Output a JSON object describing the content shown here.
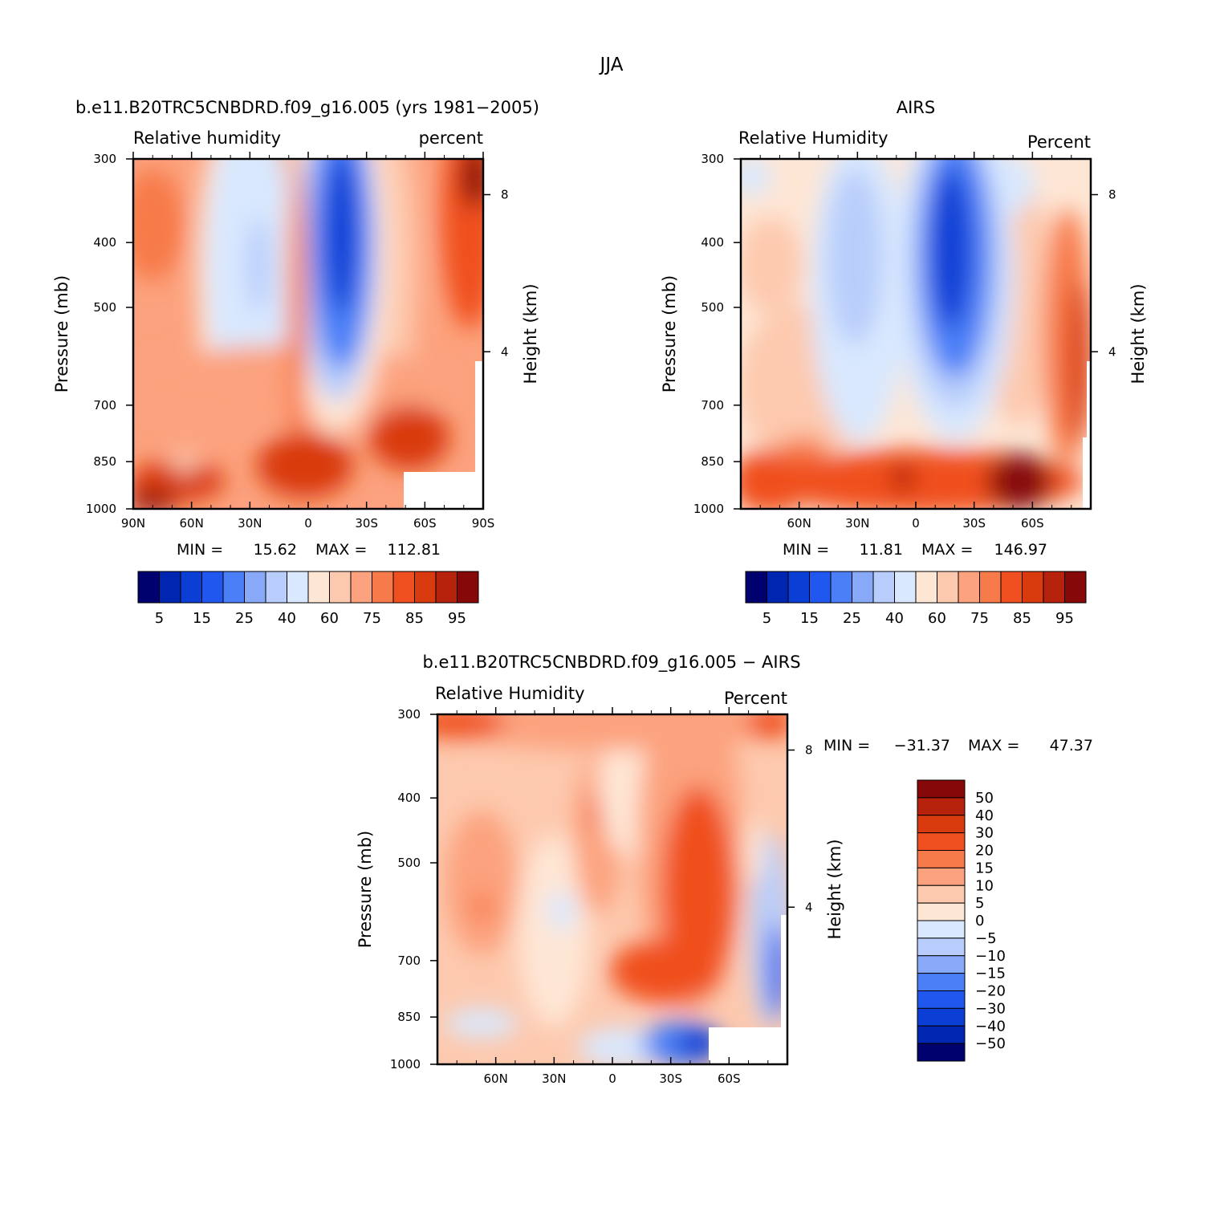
{
  "figure_title": "JJA",
  "chart_data": [
    {
      "type": "heatmap",
      "title": "b.e11.B20TRC5CNBDRD.f09_g16.005 (yrs 1981−2005)",
      "left_label": "Relative humidity",
      "right_label": "percent",
      "xlabel": "",
      "ylabel": "Pressure (mb)",
      "y2label": "Height (km)",
      "x_ticks": [
        "90N",
        "60N",
        "30N",
        "0",
        "30S",
        "60S",
        "90S"
      ],
      "y_ticks": [
        "300",
        "400",
        "500",
        "700",
        "850",
        "1000"
      ],
      "y2_ticks": [
        "8",
        "4"
      ],
      "ylim": [
        1000,
        300
      ],
      "min_label": "MIN =",
      "min": "15.62",
      "max_label": "MAX =",
      "max": "112.81",
      "colorbar_labels": [
        "5",
        "15",
        "25",
        "40",
        "60",
        "75",
        "85",
        "95"
      ],
      "colors": [
        "#00006e",
        "#0025b0",
        "#0a3ed4",
        "#1f57ef",
        "#4a7ff7",
        "#88a9f8",
        "#b8cdfb",
        "#d9e8fe",
        "#fee6d5",
        "#fdc9ae",
        "#fca27e",
        "#f77a4a",
        "#f0501f",
        "#d93a0e",
        "#b6220b",
        "#870808"
      ]
    },
    {
      "type": "heatmap",
      "title": "AIRS",
      "left_label": "Relative Humidity",
      "right_label": "Percent",
      "xlabel": "",
      "ylabel": "Pressure (mb)",
      "y2label": "Height (km)",
      "x_ticks": [
        "60N",
        "30N",
        "0",
        "30S",
        "60S"
      ],
      "y_ticks": [
        "300",
        "400",
        "500",
        "700",
        "850",
        "1000"
      ],
      "y2_ticks": [
        "8",
        "4"
      ],
      "ylim": [
        1000,
        300
      ],
      "min_label": "MIN =",
      "min": "11.81",
      "max_label": "MAX =",
      "max": "146.97",
      "colorbar_labels": [
        "5",
        "15",
        "25",
        "40",
        "60",
        "75",
        "85",
        "95"
      ],
      "colors": [
        "#00006e",
        "#0025b0",
        "#0a3ed4",
        "#1f57ef",
        "#4a7ff7",
        "#88a9f8",
        "#b8cdfb",
        "#d9e8fe",
        "#fee6d5",
        "#fdc9ae",
        "#fca27e",
        "#f77a4a",
        "#f0501f",
        "#d93a0e",
        "#b6220b",
        "#870808"
      ]
    },
    {
      "type": "heatmap",
      "title": "b.e11.B20TRC5CNBDRD.f09_g16.005 − AIRS",
      "left_label": "Relative Humidity",
      "right_label": "Percent",
      "xlabel": "",
      "ylabel": "Pressure (mb)",
      "y2label": "Height (km)",
      "x_ticks": [
        "60N",
        "30N",
        "0",
        "30S",
        "60S"
      ],
      "y_ticks": [
        "300",
        "400",
        "500",
        "700",
        "850",
        "1000"
      ],
      "y2_ticks": [
        "8",
        "4"
      ],
      "ylim": [
        1000,
        300
      ],
      "min_label": "MIN =",
      "min": "−31.37",
      "max_label": "MAX =",
      "max": "47.37",
      "colorbar_labels": [
        "50",
        "40",
        "30",
        "20",
        "15",
        "10",
        "5",
        "0",
        "−5",
        "−10",
        "−15",
        "−20",
        "−30",
        "−40",
        "−50"
      ],
      "colors": [
        "#870808",
        "#b6220b",
        "#d93a0e",
        "#f0501f",
        "#f77a4a",
        "#fca27e",
        "#fdc9ae",
        "#fee6d5",
        "#d9e8fe",
        "#b8cdfb",
        "#88a9f8",
        "#4a7ff7",
        "#1f57ef",
        "#0a3ed4",
        "#0025b0",
        "#00006e"
      ]
    }
  ]
}
